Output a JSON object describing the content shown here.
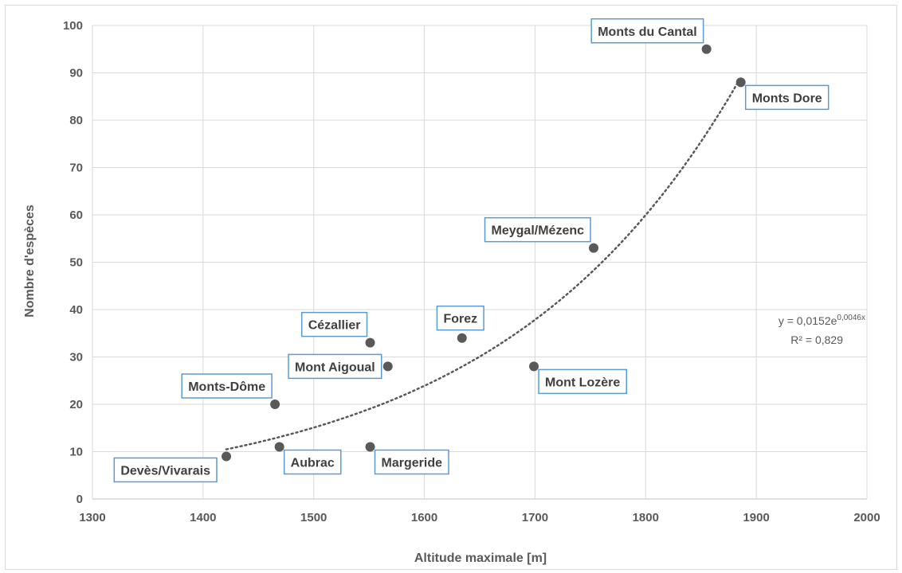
{
  "chart_data": {
    "type": "scatter",
    "title": "",
    "xlabel": "Altitude maximale [m]",
    "ylabel": "Nombre d'espèces",
    "xlim": [
      1300,
      2000
    ],
    "ylim": [
      0,
      100
    ],
    "x_ticks": [
      "1300",
      "1400",
      "1500",
      "1600",
      "1700",
      "1800",
      "1900",
      "2000"
    ],
    "y_ticks": [
      "0",
      "10",
      "20",
      "30",
      "40",
      "50",
      "60",
      "70",
      "80",
      "90",
      "100"
    ],
    "grid": true,
    "marker_color": "#595959",
    "label_border_color": "#5b9bd5",
    "points": [
      {
        "label": "Devès/Vivarais",
        "x": 1421,
        "y": 9,
        "label_side": "bottom-left"
      },
      {
        "label": "Monts-Dôme",
        "x": 1465,
        "y": 20,
        "label_side": "top-left"
      },
      {
        "label": "Aubrac",
        "x": 1469,
        "y": 11,
        "label_side": "bottom-right"
      },
      {
        "label": "Cézallier",
        "x": 1551,
        "y": 33,
        "label_side": "top-left"
      },
      {
        "label": "Margeride",
        "x": 1551,
        "y": 11,
        "label_side": "bottom-right"
      },
      {
        "label": "Mont Aigoual",
        "x": 1567,
        "y": 28,
        "label_side": "left"
      },
      {
        "label": "Forez",
        "x": 1634,
        "y": 34,
        "label_side": "top"
      },
      {
        "label": "Mont Lozère",
        "x": 1699,
        "y": 28,
        "label_side": "bottom-right"
      },
      {
        "label": "Meygal/Mézenc",
        "x": 1753,
        "y": 53,
        "label_side": "top-left"
      },
      {
        "label": "Monts du Cantal",
        "x": 1855,
        "y": 95,
        "label_side": "top-left"
      },
      {
        "label": "Monts Dore",
        "x": 1886,
        "y": 88,
        "label_side": "bottom-right"
      }
    ],
    "trendline": {
      "type": "exponential",
      "a": 0.0152,
      "b": 0.0046,
      "x_range": [
        1421,
        1886
      ],
      "style": "dotted",
      "equation_prefix": "y = 0,0152e",
      "equation_exponent": "0,0046x",
      "r_squared_text": "R² = 0,829"
    }
  }
}
